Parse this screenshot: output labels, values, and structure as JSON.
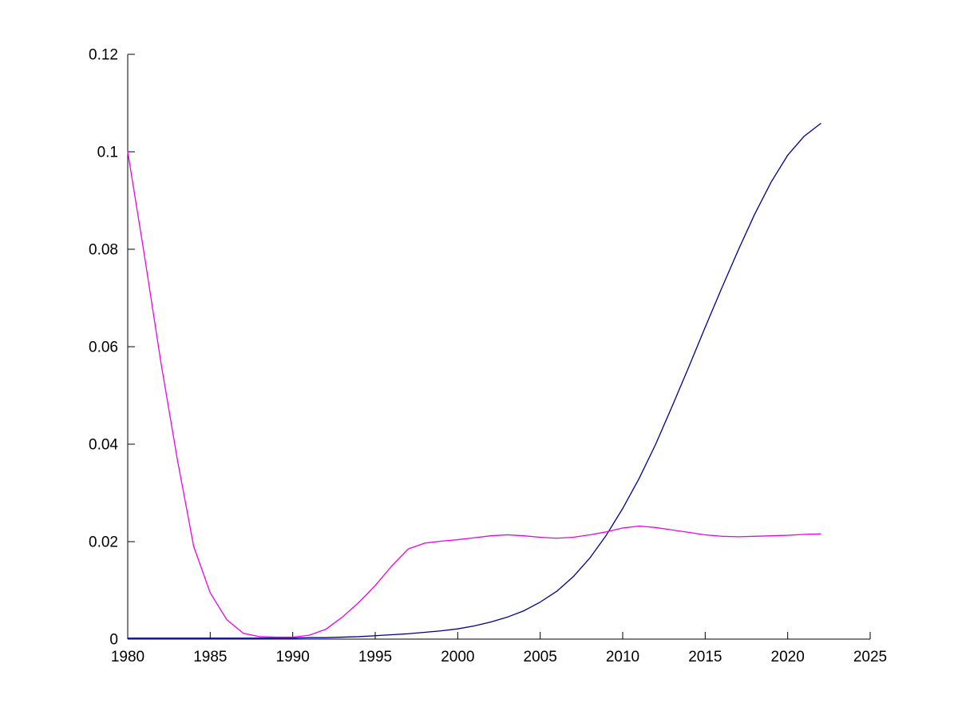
{
  "figure": {
    "background": "#FFFFFF",
    "axis_color": "#000000",
    "tick_font_size": 19,
    "tick_length": 9
  },
  "chart_data": {
    "type": "line",
    "title": "",
    "xlabel": "",
    "ylabel": "",
    "grid": false,
    "legend": "none",
    "xlim": [
      1980,
      2025
    ],
    "ylim": [
      0,
      0.12
    ],
    "xticks": [
      1980,
      1985,
      1990,
      1995,
      2000,
      2005,
      2010,
      2015,
      2020,
      2025
    ],
    "xtick_labels": [
      "1980",
      "1985",
      "1990",
      "1995",
      "2000",
      "2005",
      "2010",
      "2015",
      "2020",
      "2025"
    ],
    "yticks": [
      0,
      0.02,
      0.04,
      0.06,
      0.08,
      0.1,
      0.12
    ],
    "ytick_labels": [
      "0",
      "0.02",
      "0.04",
      "0.06",
      "0.08",
      "0.1",
      "0.12"
    ],
    "x": [
      1980,
      1981,
      1982,
      1983,
      1984,
      1985,
      1986,
      1987,
      1988,
      1989,
      1990,
      1991,
      1992,
      1993,
      1994,
      1995,
      1996,
      1997,
      1998,
      1999,
      2000,
      2001,
      2002,
      2003,
      2004,
      2005,
      2006,
      2007,
      2008,
      2009,
      2010,
      2011,
      2012,
      2013,
      2014,
      2015,
      2016,
      2017,
      2018,
      2019,
      2020,
      2021,
      2022
    ],
    "series": [
      {
        "name": "blue-series",
        "color": "#00008B",
        "values": [
          0.0002,
          0.0002,
          0.0002,
          0.0002,
          0.0002,
          0.0002,
          0.0002,
          0.0002,
          0.0002,
          0.0002,
          0.0002,
          0.0003,
          0.0003,
          0.0004,
          0.0005,
          0.0007,
          0.0009,
          0.0011,
          0.0014,
          0.0017,
          0.0021,
          0.0027,
          0.0035,
          0.0045,
          0.0058,
          0.0076,
          0.0098,
          0.0128,
          0.0166,
          0.0213,
          0.0268,
          0.033,
          0.04,
          0.0478,
          0.0558,
          0.064,
          0.072,
          0.0798,
          0.0872,
          0.0938,
          0.0993,
          0.1032,
          0.1058
        ]
      },
      {
        "name": "magenta-series",
        "color": "#EE00EE",
        "values": [
          0.1,
          0.079,
          0.057,
          0.037,
          0.019,
          0.0095,
          0.004,
          0.0012,
          0.0005,
          0.0004,
          0.0004,
          0.0008,
          0.002,
          0.0045,
          0.0075,
          0.011,
          0.015,
          0.0185,
          0.0197,
          0.0201,
          0.0204,
          0.0208,
          0.0212,
          0.0214,
          0.0212,
          0.0209,
          0.0207,
          0.0209,
          0.0214,
          0.022,
          0.0228,
          0.0232,
          0.0229,
          0.0224,
          0.0219,
          0.0214,
          0.0211,
          0.021,
          0.0211,
          0.0212,
          0.0213,
          0.0215,
          0.0216
        ]
      }
    ]
  }
}
